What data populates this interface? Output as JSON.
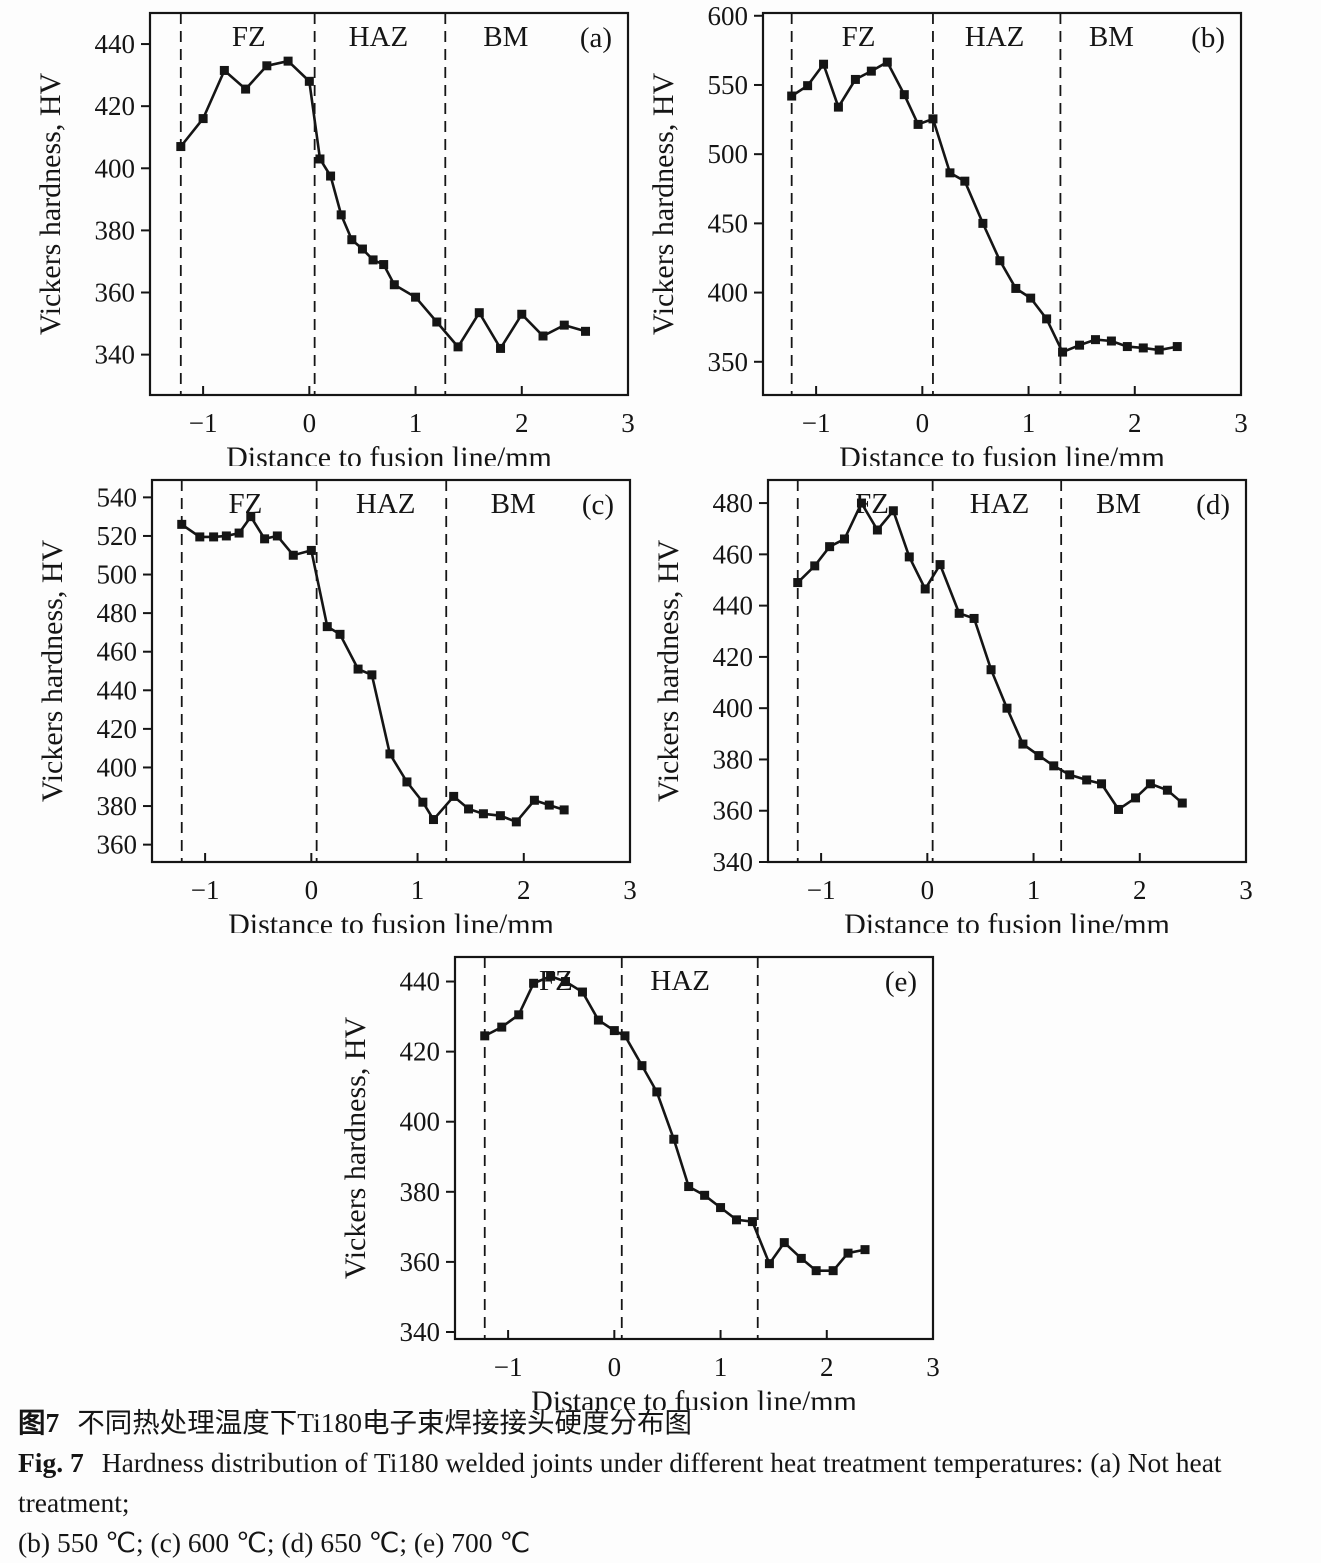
{
  "caption": {
    "zh_label": "图7",
    "zh_text": "不同热处理温度下Ti180电子束焊接接头硬度分布图",
    "en_label": "Fig. 7",
    "en_line1": "Hardness distribution of Ti180 welded joints under different heat treatment temperatures: (a) Not heat treatment;",
    "en_line2": "(b) 550 ℃; (c) 600 ℃; (d) 650 ℃; (e) 700 ℃"
  },
  "style": {
    "ink_color": "#151515",
    "background": "#fdfdfd",
    "marker": "square",
    "grid": "off",
    "legend": "none"
  },
  "chart_data": [
    {
      "type": "line",
      "panel": "(a)",
      "condition": "Not heat treatment",
      "xlabel": "Distance to fusion line/mm",
      "ylabel": "Vickers hardness, HV",
      "xlim": [
        -1.5,
        3
      ],
      "ylim": [
        327,
        450
      ],
      "xticks": [
        -1,
        0,
        1,
        2,
        3
      ],
      "yticks": [
        340,
        360,
        380,
        400,
        420,
        440
      ],
      "dividers": [
        -1.21,
        0.05,
        1.28
      ],
      "zones": [
        {
          "label": "FZ",
          "x": -0.57
        },
        {
          "label": "HAZ",
          "x": 0.65
        },
        {
          "label": "BM",
          "x": 1.85
        }
      ],
      "points": [
        [
          -1.21,
          407
        ],
        [
          -1.0,
          416
        ],
        [
          -0.8,
          431.5
        ],
        [
          -0.6,
          425.5
        ],
        [
          -0.4,
          433
        ],
        [
          -0.2,
          434.5
        ],
        [
          0.0,
          428
        ],
        [
          0.1,
          403
        ],
        [
          0.2,
          397.5
        ],
        [
          0.3,
          385
        ],
        [
          0.4,
          377
        ],
        [
          0.5,
          374
        ],
        [
          0.6,
          370.5
        ],
        [
          0.7,
          369
        ],
        [
          0.8,
          362.5
        ],
        [
          1.0,
          358.5
        ],
        [
          1.2,
          350.5
        ],
        [
          1.4,
          342.5
        ],
        [
          1.6,
          353.5
        ],
        [
          1.8,
          342
        ],
        [
          2.0,
          353
        ],
        [
          2.2,
          346
        ],
        [
          2.4,
          349.5
        ],
        [
          2.6,
          347.5
        ]
      ]
    },
    {
      "type": "line",
      "panel": "(b)",
      "condition": "550 ℃",
      "xlabel": "Distance to fusion line/mm",
      "ylabel": "Vickers hardness, HV",
      "xlim": [
        -1.5,
        3
      ],
      "ylim": [
        326,
        602
      ],
      "xticks": [
        -1,
        0,
        1,
        2,
        3
      ],
      "yticks": [
        350,
        400,
        450,
        500,
        550,
        600
      ],
      "dividers": [
        -1.23,
        0.1,
        1.3
      ],
      "zones": [
        {
          "label": "FZ",
          "x": -0.6
        },
        {
          "label": "HAZ",
          "x": 0.68
        },
        {
          "label": "BM",
          "x": 1.78
        }
      ],
      "points": [
        [
          -1.23,
          542
        ],
        [
          -1.08,
          549.5
        ],
        [
          -0.93,
          565
        ],
        [
          -0.79,
          534
        ],
        [
          -0.63,
          554
        ],
        [
          -0.48,
          560
        ],
        [
          -0.33,
          566.5
        ],
        [
          -0.17,
          543
        ],
        [
          -0.04,
          521.5
        ],
        [
          0.1,
          525.5
        ],
        [
          0.26,
          486.5
        ],
        [
          0.4,
          480.5
        ],
        [
          0.57,
          450
        ],
        [
          0.73,
          423
        ],
        [
          0.88,
          403
        ],
        [
          1.02,
          396
        ],
        [
          1.17,
          381
        ],
        [
          1.32,
          357
        ],
        [
          1.48,
          362
        ],
        [
          1.63,
          366
        ],
        [
          1.78,
          365
        ],
        [
          1.93,
          361
        ],
        [
          2.08,
          360
        ],
        [
          2.23,
          358.5
        ],
        [
          2.4,
          361
        ]
      ]
    },
    {
      "type": "line",
      "panel": "(c)",
      "condition": "600 ℃",
      "xlabel": "Distance to fusion line/mm",
      "ylabel": "Vickers hardness, HV",
      "xlim": [
        -1.5,
        3
      ],
      "ylim": [
        351,
        549
      ],
      "xticks": [
        -1,
        0,
        1,
        2,
        3
      ],
      "yticks": [
        360,
        380,
        400,
        420,
        440,
        460,
        480,
        500,
        520,
        540
      ],
      "dividers": [
        -1.22,
        0.05,
        1.27
      ],
      "zones": [
        {
          "label": "FZ",
          "x": -0.62
        },
        {
          "label": "HAZ",
          "x": 0.7
        },
        {
          "label": "BM",
          "x": 1.9
        }
      ],
      "points": [
        [
          -1.22,
          526
        ],
        [
          -1.05,
          519.5
        ],
        [
          -0.92,
          519.5
        ],
        [
          -0.8,
          520
        ],
        [
          -0.68,
          521.5
        ],
        [
          -0.57,
          530
        ],
        [
          -0.44,
          518.5
        ],
        [
          -0.32,
          520
        ],
        [
          -0.17,
          510
        ],
        [
          0.0,
          512.5
        ],
        [
          0.15,
          473
        ],
        [
          0.27,
          469
        ],
        [
          0.44,
          451
        ],
        [
          0.57,
          448
        ],
        [
          0.74,
          407
        ],
        [
          0.9,
          392.5
        ],
        [
          1.05,
          382
        ],
        [
          1.15,
          373
        ],
        [
          1.34,
          385
        ],
        [
          1.48,
          378.5
        ],
        [
          1.62,
          376
        ],
        [
          1.78,
          375
        ],
        [
          1.93,
          371.8
        ],
        [
          2.1,
          383
        ],
        [
          2.24,
          380.5
        ],
        [
          2.38,
          378
        ]
      ]
    },
    {
      "type": "line",
      "panel": "(d)",
      "condition": "650 ℃",
      "xlabel": "Distance to fusion line/mm",
      "ylabel": "Vickers hardness, HV",
      "xlim": [
        -1.5,
        3
      ],
      "ylim": [
        340,
        489
      ],
      "xticks": [
        -1,
        0,
        1,
        2,
        3
      ],
      "yticks": [
        340,
        360,
        380,
        400,
        420,
        440,
        460,
        480
      ],
      "dividers": [
        -1.22,
        0.05,
        1.26
      ],
      "zones": [
        {
          "label": "FZ",
          "x": -0.52
        },
        {
          "label": "HAZ",
          "x": 0.68
        },
        {
          "label": "BM",
          "x": 1.8
        }
      ],
      "points": [
        [
          -1.22,
          449
        ],
        [
          -1.06,
          455.5
        ],
        [
          -0.92,
          463
        ],
        [
          -0.78,
          466
        ],
        [
          -0.62,
          480
        ],
        [
          -0.47,
          469.5
        ],
        [
          -0.32,
          477
        ],
        [
          -0.17,
          459
        ],
        [
          -0.02,
          446.5
        ],
        [
          0.12,
          456
        ],
        [
          0.3,
          437
        ],
        [
          0.44,
          435
        ],
        [
          0.6,
          415
        ],
        [
          0.75,
          400
        ],
        [
          0.9,
          386
        ],
        [
          1.05,
          381.5
        ],
        [
          1.19,
          377.5
        ],
        [
          1.34,
          374
        ],
        [
          1.5,
          372
        ],
        [
          1.64,
          370.5
        ],
        [
          1.8,
          360.5
        ],
        [
          1.96,
          365
        ],
        [
          2.1,
          370.5
        ],
        [
          2.26,
          368
        ],
        [
          2.4,
          363
        ]
      ]
    },
    {
      "type": "line",
      "panel": "(e)",
      "condition": "700 ℃",
      "xlabel": "Distance to fusion line/mm",
      "ylabel": "Vickers hardness, HV",
      "xlim": [
        -1.5,
        3
      ],
      "ylim": [
        338,
        447
      ],
      "xticks": [
        -1,
        0,
        1,
        2,
        3
      ],
      "yticks": [
        340,
        360,
        380,
        400,
        420,
        440
      ],
      "dividers": [
        -1.22,
        0.07,
        1.35
      ],
      "zones": [
        {
          "label": "FZ",
          "x": -0.55
        },
        {
          "label": "HAZ",
          "x": 0.62
        }
      ],
      "points": [
        [
          -1.22,
          424.5
        ],
        [
          -1.06,
          427
        ],
        [
          -0.9,
          430.5
        ],
        [
          -0.76,
          439.5
        ],
        [
          -0.6,
          441.5
        ],
        [
          -0.46,
          440
        ],
        [
          -0.3,
          437
        ],
        [
          -0.15,
          429
        ],
        [
          0.0,
          426
        ],
        [
          0.1,
          424.5
        ],
        [
          0.26,
          416
        ],
        [
          0.4,
          408.5
        ],
        [
          0.56,
          395
        ],
        [
          0.7,
          381.5
        ],
        [
          0.85,
          379
        ],
        [
          1.0,
          375.5
        ],
        [
          1.15,
          372
        ],
        [
          1.3,
          371.5
        ],
        [
          1.46,
          359.5
        ],
        [
          1.6,
          365.5
        ],
        [
          1.76,
          361
        ],
        [
          1.9,
          357.5
        ],
        [
          2.06,
          357.5
        ],
        [
          2.2,
          362.5
        ],
        [
          2.36,
          363.5
        ]
      ]
    }
  ]
}
